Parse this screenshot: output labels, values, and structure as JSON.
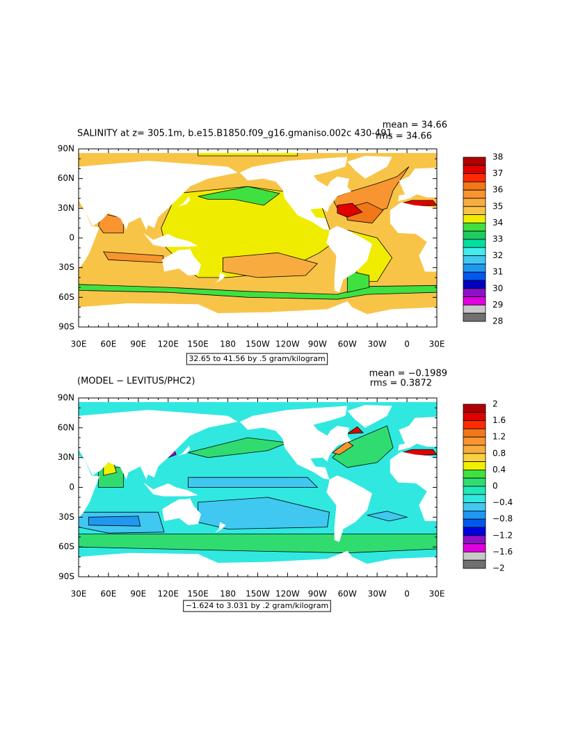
{
  "panels": [
    {
      "title": "SALINITY at z= 305.1m, b.e15.B1850.f09_g16.gmaniso.002c 430-491",
      "mean": "mean = 34.66",
      "rms": "rms = 34.66",
      "range_note": "32.65 to 41.56 by .5 gram/kilogram",
      "xticks": [
        "30E",
        "60E",
        "90E",
        "120E",
        "150E",
        "180",
        "150W",
        "120W",
        "90W",
        "60W",
        "30W",
        "0",
        "30E"
      ],
      "yticks": [
        "90N",
        "60N",
        "30N",
        "0",
        "30S",
        "60S",
        "90S"
      ],
      "colorbar": {
        "labels": [
          "38",
          "37",
          "36",
          "35",
          "34",
          "33",
          "32",
          "31",
          "30",
          "29",
          "28"
        ],
        "colors": [
          "#b00000",
          "#e00000",
          "#ff2a00",
          "#f07818",
          "#f89530",
          "#f8ac40",
          "#f8c448",
          "#f0ec00",
          "#40e040",
          "#20cc60",
          "#00e0a0",
          "#40ecec",
          "#40c8f0",
          "#2098f0",
          "#0058f0",
          "#0000c0",
          "#9010c8",
          "#e000e0",
          "#c8c8c8",
          "#707070"
        ]
      }
    },
    {
      "title": "(MODEL − LEVITUS/PHC2)",
      "mean": "mean = −0.1989",
      "rms": "rms = 0.3872",
      "range_note": "−1.624 to 3.031 by .2 gram/kilogram",
      "xticks": [
        "30E",
        "60E",
        "90E",
        "120E",
        "150E",
        "180",
        "150W",
        "120W",
        "90W",
        "60W",
        "30W",
        "0",
        "30E"
      ],
      "yticks": [
        "90N",
        "60N",
        "30N",
        "0",
        "30S",
        "60S",
        "90S"
      ],
      "colorbar": {
        "labels": [
          "2",
          "1.6",
          "1.2",
          "0.8",
          "0.4",
          "0",
          "−0.4",
          "−0.8",
          "−1.2",
          "−1.6",
          "−2"
        ],
        "colors": [
          "#b00000",
          "#e00000",
          "#ff2a00",
          "#f07818",
          "#f89530",
          "#f8ac40",
          "#f8d040",
          "#f0f000",
          "#40e040",
          "#30dc70",
          "#20e8b8",
          "#30e8e0",
          "#40c8f0",
          "#2098f0",
          "#0058f0",
          "#0000e0",
          "#9010c8",
          "#e000e0",
          "#c8c8c8",
          "#707070"
        ]
      }
    }
  ]
}
